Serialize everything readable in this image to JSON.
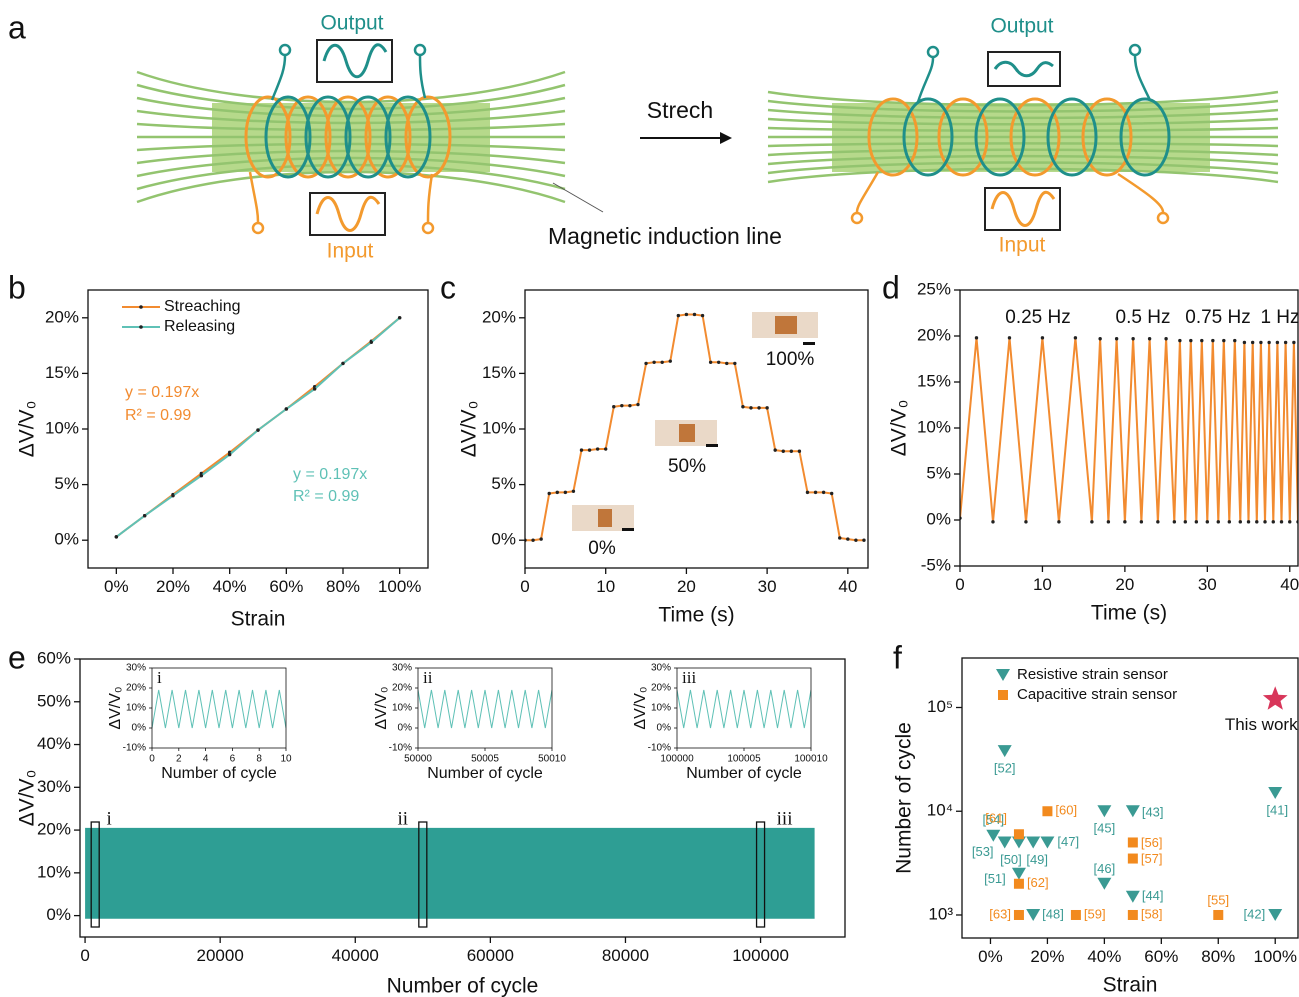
{
  "panel_labels": [
    "a",
    "b",
    "c",
    "d",
    "e",
    "f"
  ],
  "diagram": {
    "left_output": "Output",
    "left_input": "Input",
    "arrow_label": "Strech",
    "field_label": "Magnetic induction line",
    "right_output": "Output",
    "right_input": "Input"
  },
  "chart_data": [
    {
      "type": "line",
      "xlabel": "Strain",
      "ylabel": "ΔV/V₀",
      "xlim": [
        -10,
        110
      ],
      "ylim": [
        -2.5,
        22.5
      ],
      "xticks": [
        {
          "value": 0,
          "label": "0%"
        },
        {
          "value": 20,
          "label": "20%"
        },
        {
          "value": 40,
          "label": "40%"
        },
        {
          "value": 60,
          "label": "60%"
        },
        {
          "value": 80,
          "label": "80%"
        },
        {
          "value": 100,
          "label": "100%"
        }
      ],
      "yticks": [
        {
          "value": 0,
          "label": "0%"
        },
        {
          "value": 5,
          "label": "5%"
        },
        {
          "value": 10,
          "label": "10%"
        },
        {
          "value": 15,
          "label": "15%"
        },
        {
          "value": 20,
          "label": "20%"
        }
      ],
      "legend": true,
      "x": [
        0,
        10,
        20,
        30,
        40,
        50,
        60,
        70,
        80,
        90,
        100
      ],
      "series": [
        {
          "name": "Streaching",
          "color": "#f28b30",
          "markers": true,
          "values": [
            0.3,
            2.2,
            4.1,
            6.0,
            7.9,
            9.9,
            11.8,
            13.8,
            15.9,
            17.9,
            20.0
          ]
        },
        {
          "name": "Releasing",
          "color": "#5fc1b6",
          "markers": true,
          "values": [
            0.3,
            2.2,
            4.0,
            5.8,
            7.7,
            9.9,
            11.8,
            13.6,
            15.9,
            17.8,
            20.0
          ]
        }
      ],
      "annotations": [
        "y = 0.197x",
        "R² = 0.99",
        "y = 0.197x",
        "R² = 0.99"
      ]
    },
    {
      "type": "line",
      "xlabel": "Time (s)",
      "ylabel": "ΔV/V₀",
      "xlim": [
        0,
        42.5
      ],
      "ylim": [
        -2.5,
        22.5
      ],
      "xticks": [
        0,
        10,
        20,
        30,
        40
      ],
      "yticks": [
        {
          "value": 0,
          "label": "0%"
        },
        {
          "value": 5,
          "label": "5%"
        },
        {
          "value": 10,
          "label": "10%"
        },
        {
          "value": 15,
          "label": "15%"
        },
        {
          "value": 20,
          "label": "20%"
        }
      ],
      "x": [
        0,
        1,
        2,
        3,
        4,
        5,
        6,
        7,
        8,
        9,
        10,
        11,
        12,
        13,
        14,
        15,
        16,
        17,
        18,
        19,
        20,
        21,
        22,
        23,
        24,
        25,
        26,
        27,
        28,
        29,
        30,
        31,
        32,
        33,
        34,
        35,
        36,
        37,
        38,
        39,
        40,
        41,
        42
      ],
      "series": [
        {
          "color": "#f28b30",
          "markers": true,
          "values": [
            0,
            0,
            0.1,
            4.2,
            4.3,
            4.3,
            4.4,
            8.1,
            8.1,
            8.2,
            8.2,
            12.0,
            12.1,
            12.1,
            12.2,
            15.9,
            16.0,
            16.0,
            16.1,
            20.2,
            20.3,
            20.3,
            20.2,
            16.0,
            16.0,
            15.9,
            15.9,
            12.0,
            11.9,
            11.9,
            11.9,
            8.1,
            8.0,
            8.0,
            8.0,
            4.3,
            4.3,
            4.3,
            4.2,
            0.2,
            0.1,
            0,
            0
          ]
        }
      ],
      "annotations": [
        "0%",
        "50%",
        "100%"
      ]
    },
    {
      "type": "line",
      "xlabel": "Time (s)",
      "ylabel": "ΔV/V₀",
      "xlim": [
        0,
        41
      ],
      "ylim": [
        -5,
        25
      ],
      "xticks": [
        0,
        10,
        20,
        30,
        40
      ],
      "yticks": [
        {
          "value": -5,
          "label": "-5%"
        },
        {
          "value": 0,
          "label": "0%"
        },
        {
          "value": 5,
          "label": "5%"
        },
        {
          "value": 10,
          "label": "10%"
        },
        {
          "value": 15,
          "label": "15%"
        },
        {
          "value": 20,
          "label": "20%"
        },
        {
          "value": 25,
          "label": "25%"
        }
      ],
      "x": [
        0,
        2,
        4,
        6,
        8,
        10,
        12,
        14,
        16,
        17,
        18,
        19,
        20,
        21,
        22,
        23,
        24,
        25,
        26,
        26.67,
        27.33,
        28,
        28.67,
        29.33,
        30,
        30.67,
        31.33,
        32,
        32.67,
        33.33,
        34,
        34.5,
        35,
        35.5,
        36,
        36.5,
        37,
        37.5,
        38,
        38.5,
        39,
        39.5,
        40,
        40.5,
        41
      ],
      "series": [
        {
          "color": "#f28b30",
          "markers": true,
          "values": [
            0.2,
            19.8,
            -0.2,
            19.8,
            -0.2,
            19.8,
            -0.2,
            19.8,
            -0.2,
            19.7,
            -0.2,
            19.7,
            -0.2,
            19.7,
            -0.2,
            19.7,
            -0.2,
            19.7,
            -0.2,
            19.5,
            -0.2,
            19.5,
            -0.2,
            19.5,
            -0.2,
            19.5,
            -0.2,
            19.5,
            -0.2,
            19.5,
            -0.2,
            19.3,
            -0.2,
            19.3,
            -0.2,
            19.3,
            -0.2,
            19.3,
            -0.2,
            19.3,
            -0.2,
            19.3,
            -0.2,
            19.3,
            -0.2
          ]
        }
      ],
      "annotations": [
        "0.25 Hz",
        "0.5 Hz",
        "0.75 Hz",
        "1 Hz"
      ]
    },
    {
      "type": "area",
      "xlabel": "Number of cycle",
      "ylabel": "ΔV/V₀",
      "xlim": [
        -750,
        112500
      ],
      "ylim": [
        -5,
        60
      ],
      "xticks": [
        0,
        20000,
        40000,
        60000,
        80000,
        100000
      ],
      "yticks": [
        {
          "value": 0,
          "label": "0%"
        },
        {
          "value": 10,
          "label": "10%"
        },
        {
          "value": 20,
          "label": "20%"
        },
        {
          "value": 30,
          "label": "30%"
        },
        {
          "value": 40,
          "label": "40%"
        },
        {
          "value": 50,
          "label": "50%"
        },
        {
          "value": 60,
          "label": "60%"
        }
      ],
      "x": [
        0,
        108000
      ],
      "series": [
        {
          "color": "#2e9e94",
          "values": [
            20.5,
            20.5
          ],
          "values_low": [
            -0.6,
            -0.6
          ]
        }
      ],
      "annotations": [
        {
          "text": "i",
          "x": 1500
        },
        {
          "text": "ii",
          "x": 50000
        },
        {
          "text": "iii",
          "x": 100000
        }
      ]
    },
    {
      "type": "line",
      "title": "i",
      "xlabel": "Number of cycle",
      "ylabel": "ΔV/V₀",
      "xlim": [
        0,
        10
      ],
      "ylim": [
        -10,
        30
      ],
      "xticks": [
        0,
        2,
        4,
        6,
        8,
        10
      ],
      "yticks": [
        {
          "value": -10,
          "label": "-10%"
        },
        {
          "value": 0,
          "label": "0%"
        },
        {
          "value": 10,
          "label": "10%"
        },
        {
          "value": 20,
          "label": "20%"
        },
        {
          "value": 30,
          "label": "30%"
        }
      ],
      "x": [
        0,
        0.5,
        1,
        1.5,
        2,
        2.5,
        3,
        3.5,
        4,
        4.5,
        5,
        5.5,
        6,
        6.5,
        7,
        7.5,
        8,
        8.5,
        9,
        9.5,
        10
      ],
      "series": [
        {
          "color": "#5fc1b6",
          "values": [
            0,
            19,
            0,
            19,
            0,
            19,
            0,
            19,
            0,
            19,
            0,
            19,
            0,
            19,
            0,
            19,
            0,
            19,
            0,
            19,
            0
          ]
        }
      ]
    },
    {
      "type": "line",
      "title": "ii",
      "xlabel": "Number of cycle",
      "ylabel": "ΔV/V₀",
      "xlim": [
        50000,
        50010
      ],
      "ylim": [
        -10,
        30
      ],
      "xticks": [
        50000,
        50005,
        50010
      ],
      "yticks": [
        {
          "value": -10,
          "label": "-10%"
        },
        {
          "value": 0,
          "label": "0%"
        },
        {
          "value": 10,
          "label": "10%"
        },
        {
          "value": 20,
          "label": "20%"
        },
        {
          "value": 30,
          "label": "30%"
        }
      ],
      "x": [
        50000,
        50000.5,
        50001,
        50001.5,
        50002,
        50002.5,
        50003,
        50003.5,
        50004,
        50004.5,
        50005,
        50005.5,
        50006,
        50006.5,
        50007,
        50007.5,
        50008,
        50008.5,
        50009,
        50009.5,
        50010
      ],
      "series": [
        {
          "color": "#5fc1b6",
          "values": [
            19,
            0,
            19,
            0,
            19,
            0,
            19,
            0,
            19,
            0,
            19,
            0,
            19,
            0,
            19,
            0,
            19,
            0,
            19,
            0,
            19
          ]
        }
      ]
    },
    {
      "type": "line",
      "title": "iii",
      "xlabel": "Number of cycle",
      "ylabel": "ΔV/V₀",
      "xlim": [
        100000,
        100010
      ],
      "ylim": [
        -10,
        30
      ],
      "xticks": [
        100000,
        100005,
        100010
      ],
      "yticks": [
        {
          "value": -10,
          "label": "-10%"
        },
        {
          "value": 0,
          "label": "0%"
        },
        {
          "value": 10,
          "label": "10%"
        },
        {
          "value": 20,
          "label": "20%"
        },
        {
          "value": 30,
          "label": "30%"
        }
      ],
      "x": [
        100000,
        100000.5,
        100001,
        100001.5,
        100002,
        100002.5,
        100003,
        100003.5,
        100004,
        100004.5,
        100005,
        100005.5,
        100006,
        100006.5,
        100007,
        100007.5,
        100008,
        100008.5,
        100009,
        100009.5,
        100010
      ],
      "series": [
        {
          "color": "#5fc1b6",
          "values": [
            19,
            0,
            19,
            0,
            19,
            0,
            19,
            0,
            19,
            0,
            19,
            0,
            19,
            0,
            19,
            0,
            19,
            0,
            19,
            0,
            19
          ]
        }
      ]
    },
    {
      "type": "scatter",
      "xlabel": "Strain",
      "ylabel": "Number of cycle",
      "xlim": [
        -10,
        108
      ],
      "ylim": [
        600,
        300000
      ],
      "log_y": true,
      "xticks": [
        {
          "value": 0,
          "label": "0%"
        },
        {
          "value": 20,
          "label": "20%"
        },
        {
          "value": 40,
          "label": "40%"
        },
        {
          "value": 60,
          "label": "60%"
        },
        {
          "value": 80,
          "label": "80%"
        },
        {
          "value": 100,
          "label": "100%"
        }
      ],
      "yticks": [
        {
          "value": 1000,
          "label": "10³"
        },
        {
          "value": 10000,
          "label": "10⁴"
        },
        {
          "value": 100000,
          "label": "10⁵"
        }
      ],
      "legend": true,
      "series": [
        {
          "name": "Resistive strain sensor",
          "color": "#3a9a93",
          "marker": "triangle-down",
          "x": [
            5,
            1,
            5,
            10,
            15,
            20,
            10,
            15,
            40,
            40,
            50,
            50,
            100,
            100
          ],
          "values": [
            38000,
            5800,
            5000,
            5000,
            5000,
            5000,
            2500,
            1000,
            10000,
            2000,
            10000,
            1500,
            15000,
            1000
          ],
          "labels": [
            "[52]",
            "[54]",
            "[53]",
            "[50]",
            "[49]",
            "[47]",
            "[51]",
            "[48]",
            "[45]",
            "[46]",
            "[43]",
            "[44]",
            "[41]",
            "[42]"
          ]
        },
        {
          "name": "Capacitive strain sensor",
          "color": "#f28a1e",
          "marker": "square",
          "x": [
            10,
            20,
            10,
            10,
            30,
            50,
            50,
            50,
            80
          ],
          "values": [
            6000,
            10000,
            2000,
            1000,
            1000,
            5000,
            3500,
            1000,
            1000
          ],
          "labels": [
            "[61]",
            "[60]",
            "[62]",
            "[63]",
            "[59]",
            "[56]",
            "[57]",
            "[58]",
            "[55]"
          ]
        },
        {
          "name": "This work",
          "color": "#d8365a",
          "marker": "star",
          "in_legend": false,
          "x": [
            100
          ],
          "values": [
            120000
          ]
        }
      ]
    }
  ]
}
